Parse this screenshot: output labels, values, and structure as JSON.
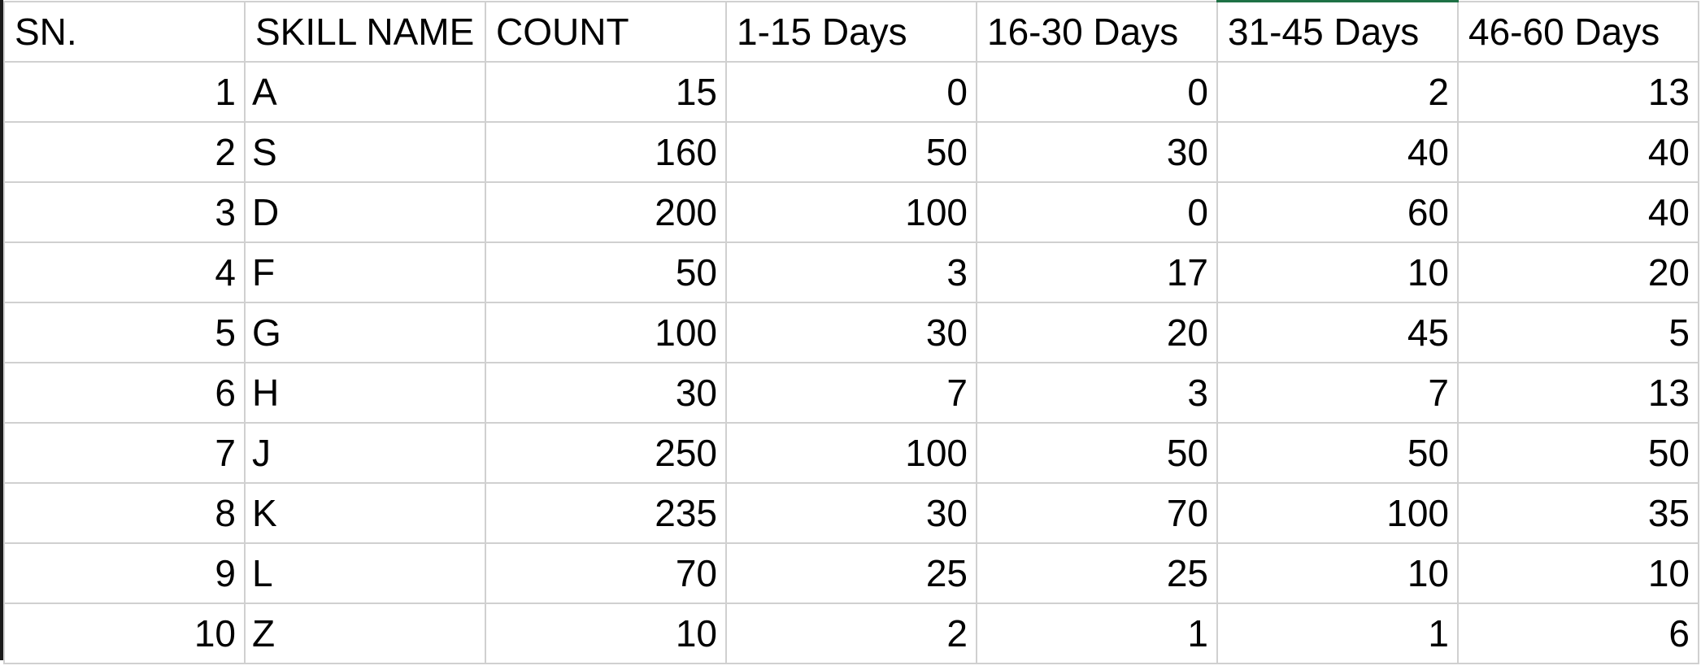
{
  "spreadsheet": {
    "headers": [
      "SN.",
      "SKILL NAME",
      "COUNT",
      "1-15 Days",
      "16-30 Days",
      "31-45 Days",
      "46-60 Days"
    ],
    "rows": [
      [
        "1",
        "A",
        "15",
        "0",
        "0",
        "2",
        "13"
      ],
      [
        "2",
        "S",
        "160",
        "50",
        "30",
        "40",
        "40"
      ],
      [
        "3",
        "D",
        "200",
        "100",
        "0",
        "60",
        "40"
      ],
      [
        "4",
        "F",
        "50",
        "3",
        "17",
        "10",
        "20"
      ],
      [
        "5",
        "G",
        "100",
        "30",
        "20",
        "45",
        "5"
      ],
      [
        "6",
        "H",
        "30",
        "7",
        "3",
        "7",
        "13"
      ],
      [
        "7",
        "J",
        "250",
        "100",
        "50",
        "50",
        "50"
      ],
      [
        "8",
        "K",
        "235",
        "30",
        "70",
        "100",
        "35"
      ],
      [
        "9",
        "L",
        "70",
        "25",
        "25",
        "10",
        "10"
      ],
      [
        "10",
        "Z",
        "10",
        "2",
        "1",
        "1",
        "6"
      ]
    ],
    "colors": {
      "gridline": "#d0d0d0",
      "active_column_accent": "#1e7145",
      "text": "#000000"
    }
  }
}
